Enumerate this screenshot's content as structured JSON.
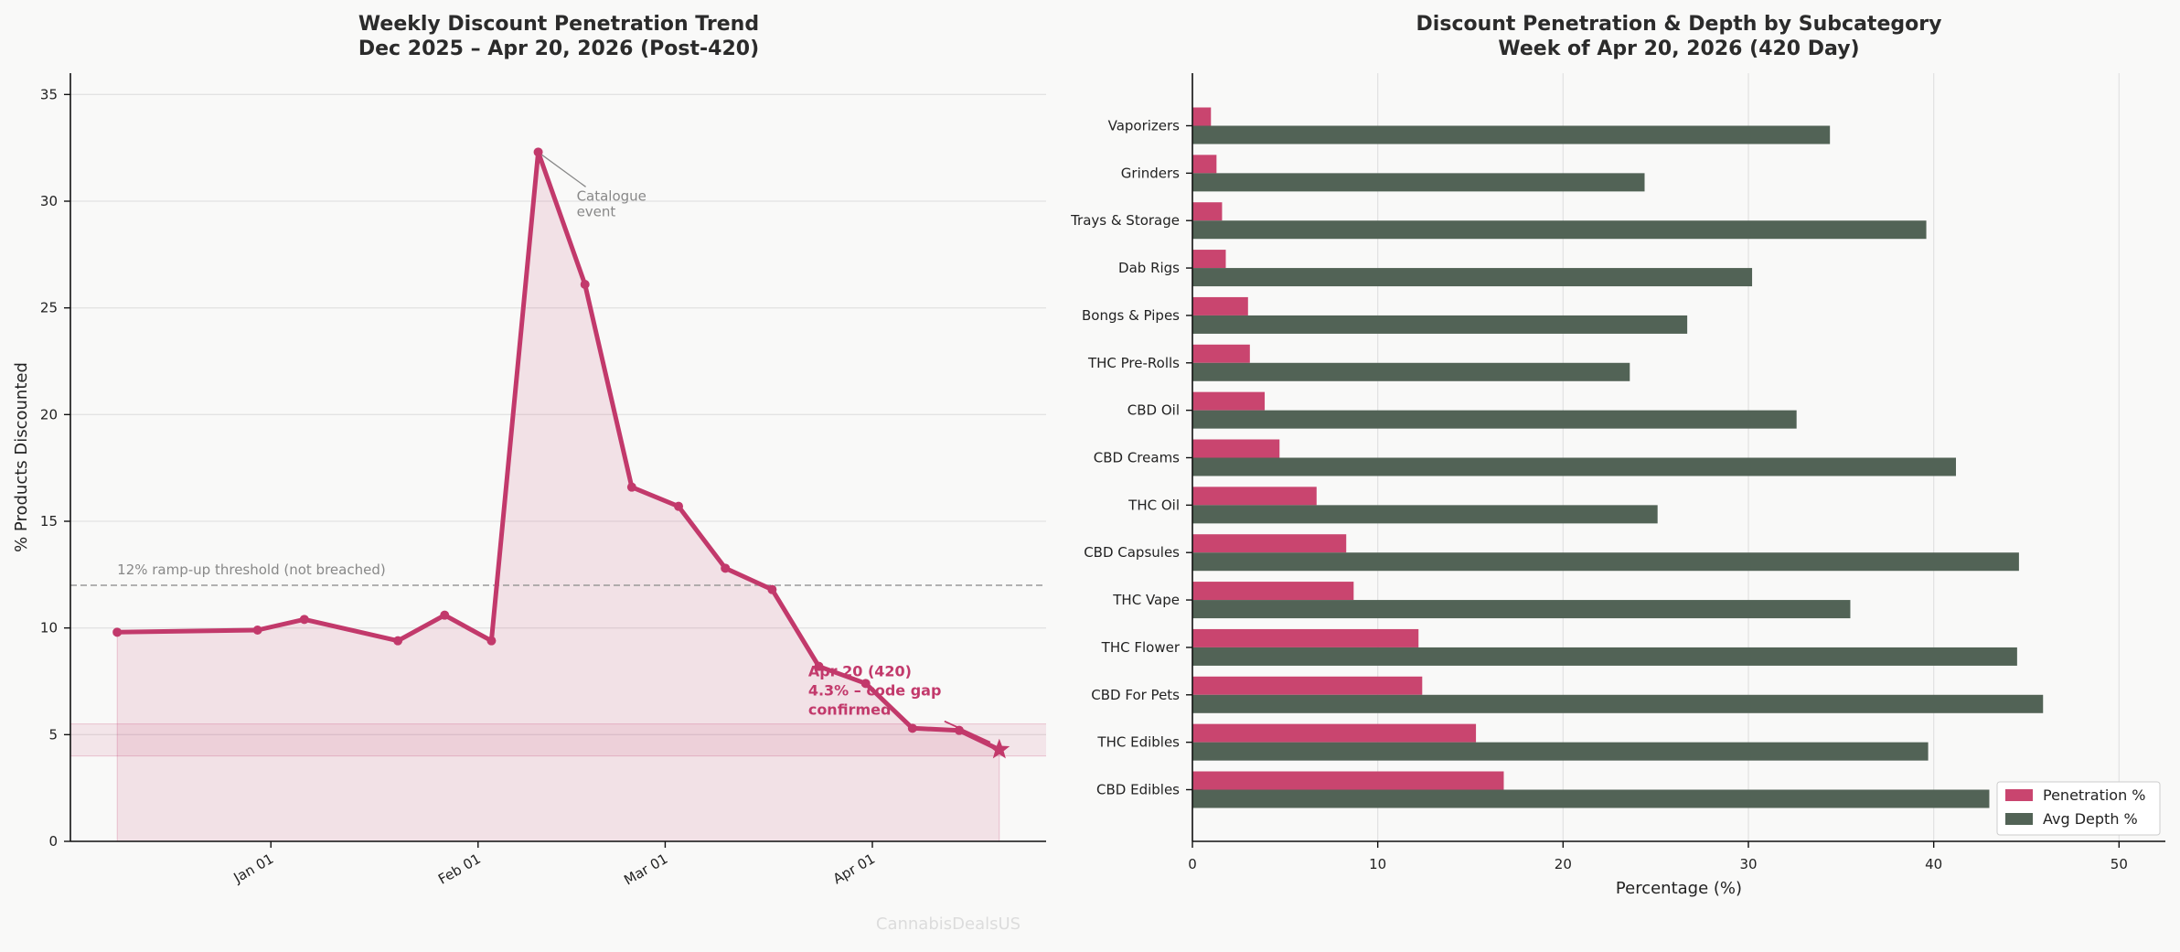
{
  "watermark": "CannabisDealsUS",
  "chart_data": [
    {
      "type": "line",
      "title": "Weekly Discount Penetration Trend",
      "subtitle": "Dec 2025 – Apr 20, 2026 (Post-420)",
      "ylabel": "% Products Discounted",
      "ylim": [
        0,
        36
      ],
      "yticks": [
        0,
        5,
        10,
        15,
        20,
        25,
        30,
        35
      ],
      "xlim": [
        "2025-12-02",
        "2026-04-27"
      ],
      "xticks": [
        {
          "date": "2026-01-01",
          "label": "Jan 01"
        },
        {
          "date": "2026-02-01",
          "label": "Feb 01"
        },
        {
          "date": "2026-03-01",
          "label": "Mar 01"
        },
        {
          "date": "2026-04-01",
          "label": "Apr 01"
        }
      ],
      "grid": "horizontal",
      "color": "#c2396b",
      "points": [
        {
          "x": "2025-12-09",
          "y": 9.8
        },
        {
          "x": "2025-12-30",
          "y": 9.9
        },
        {
          "x": "2026-01-06",
          "y": 10.4
        },
        {
          "x": "2026-01-20",
          "y": 9.4
        },
        {
          "x": "2026-01-27",
          "y": 10.6
        },
        {
          "x": "2026-02-03",
          "y": 9.4
        },
        {
          "x": "2026-02-10",
          "y": 32.3
        },
        {
          "x": "2026-02-17",
          "y": 26.1
        },
        {
          "x": "2026-02-24",
          "y": 16.6
        },
        {
          "x": "2026-03-03",
          "y": 15.7
        },
        {
          "x": "2026-03-10",
          "y": 12.8
        },
        {
          "x": "2026-03-17",
          "y": 11.8
        },
        {
          "x": "2026-03-24",
          "y": 8.2
        },
        {
          "x": "2026-03-31",
          "y": 7.4
        },
        {
          "x": "2026-04-07",
          "y": 5.3
        },
        {
          "x": "2026-04-14",
          "y": 5.2
        },
        {
          "x": "2026-04-20",
          "y": 4.3
        }
      ],
      "threshold": {
        "y": 12,
        "label": "12% ramp-up threshold (not breached)"
      },
      "band": [
        4.0,
        5.5
      ],
      "annotations": [
        {
          "text": [
            "Catalogue",
            "event"
          ],
          "x": "2026-02-10",
          "y": 32.3
        },
        {
          "text": [
            "Apr 20 (420)",
            "4.3% – code gap",
            "confirmed"
          ],
          "x": "2026-04-20",
          "y": 4.3
        }
      ]
    },
    {
      "type": "bar",
      "orientation": "horizontal",
      "title": "Discount Penetration & Depth by Subcategory",
      "subtitle": "Week of Apr 20, 2026 (420 Day)",
      "xlabel": "Percentage (%)",
      "xlim": [
        0,
        52.5
      ],
      "xticks": [
        0,
        10,
        20,
        30,
        40,
        50
      ],
      "grid": "vertical",
      "legend": "lower-right",
      "categories": [
        "Vaporizers",
        "Grinders",
        "Trays & Storage",
        "Dab Rigs",
        "Bongs & Pipes",
        "THC Pre-Rolls",
        "CBD Oil",
        "CBD Creams",
        "THC Oil",
        "CBD Capsules",
        "THC Vape",
        "THC Flower",
        "CBD For Pets",
        "THC Edibles",
        "CBD Edibles"
      ],
      "series": [
        {
          "name": "Penetration %",
          "color": "#c9456f",
          "values": [
            1.0,
            1.3,
            1.6,
            1.8,
            3.0,
            3.1,
            3.9,
            4.7,
            6.7,
            8.3,
            8.7,
            12.2,
            12.4,
            15.3,
            16.8
          ]
        },
        {
          "name": "Avg Depth %",
          "color": "#526356",
          "values": [
            34.4,
            24.4,
            39.6,
            30.2,
            26.7,
            23.6,
            32.6,
            41.2,
            25.1,
            44.6,
            35.5,
            44.5,
            45.9,
            39.7,
            43.0
          ]
        }
      ]
    }
  ]
}
